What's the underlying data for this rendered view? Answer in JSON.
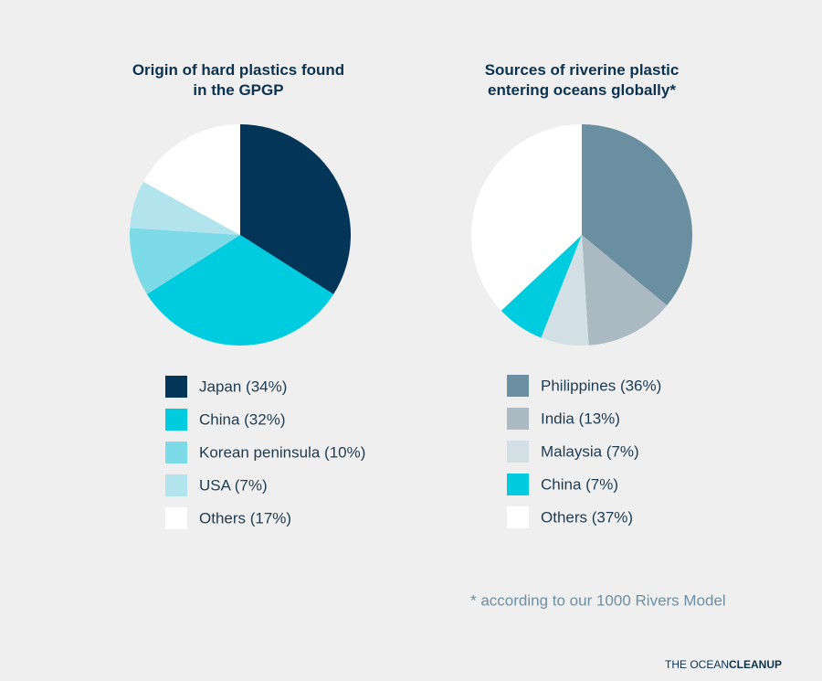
{
  "chart_data": [
    {
      "type": "pie",
      "title": "Origin of hard plastics found in the GPGP",
      "categories": [
        "Japan (34%)",
        "China (32%)",
        "Korean peninsula (10%)",
        "USA (7%)",
        "Others (17%)"
      ],
      "values": [
        34,
        32,
        10,
        7,
        17
      ],
      "colors": [
        "#023557",
        "#00cce0",
        "#7ddbe8",
        "#b3e4ee",
        "#ffffff"
      ]
    },
    {
      "type": "pie",
      "title": "Sources of riverine plastic entering oceans globally*",
      "categories": [
        "Philippines (36%)",
        "India (13%)",
        "Malaysia (7%)",
        "China (7%)",
        "Others (37%)"
      ],
      "values": [
        36,
        13,
        7,
        7,
        37
      ],
      "colors": [
        "#6a8fa1",
        "#abbac2",
        "#d2dfe4",
        "#00cce0",
        "#ffffff"
      ]
    }
  ],
  "footnote": "* according to our 1000 Rivers Model",
  "logo": {
    "light": "THE OCEAN",
    "bold": "CLEANUP"
  }
}
